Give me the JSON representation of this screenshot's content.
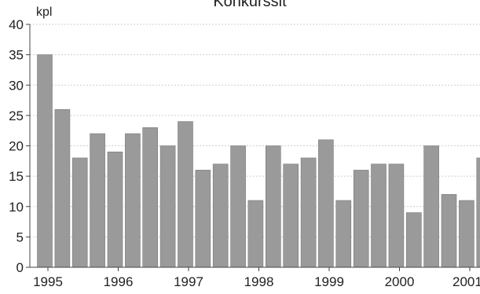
{
  "chart_data": {
    "type": "bar",
    "title": "Konkurssit",
    "ylabel": "kpl",
    "xlabel": "",
    "ylim": [
      0,
      40
    ],
    "yticks": [
      0,
      5,
      10,
      15,
      20,
      25,
      30,
      35,
      40
    ],
    "grid": true,
    "x_tick_labels": [
      "1995",
      "1996",
      "1997",
      "1998",
      "1999",
      "2000",
      "2001"
    ],
    "bar_color": "#9a9a9a",
    "values": [
      35,
      26,
      18,
      22,
      19,
      22,
      23,
      20,
      24,
      16,
      17,
      20,
      11,
      20,
      17,
      18,
      21,
      11,
      16,
      17,
      17,
      9,
      20,
      12,
      11,
      18
    ]
  }
}
